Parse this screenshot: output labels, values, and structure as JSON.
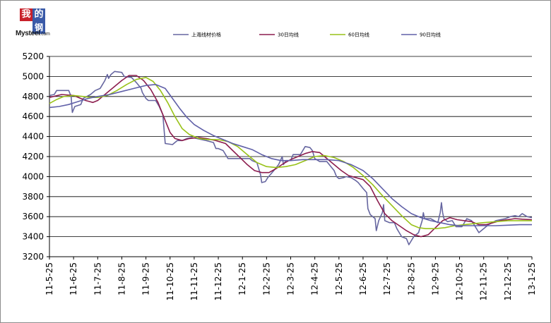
{
  "logo": {
    "box_1": "我",
    "box_2": "的",
    "box_3": "钢",
    "name": "Mysteel",
    "domain": ".com"
  },
  "chart_data": {
    "type": "line",
    "title": "",
    "xlabel": "",
    "ylabel": "",
    "ylim": [
      3200,
      5200
    ],
    "yticks": [
      3200,
      3400,
      3600,
      3800,
      4000,
      4200,
      4400,
      4600,
      4800,
      5000,
      5200
    ],
    "grid": "horizontal",
    "legend_position": "top",
    "xtick_labels": [
      "11-5-25",
      "11-6-25",
      "11-7-25",
      "11-8-25",
      "11-9-25",
      "11-10-25",
      "11-11-25",
      "11-12-25",
      "12-1-25",
      "12-2-25",
      "12-3-25",
      "12-4-25",
      "12-5-25",
      "12-6-25",
      "12-7-25",
      "12-8-25",
      "12-9-25",
      "12-10-25",
      "12-11-25",
      "12-12-25",
      "13-1-25"
    ],
    "series": [
      {
        "name": "上海线材价格",
        "color": "#6666a0",
        "points": [
          [
            0,
            4810
          ],
          [
            0.2,
            4820
          ],
          [
            0.3,
            4860
          ],
          [
            0.8,
            4860
          ],
          [
            0.9,
            4800
          ],
          [
            0.95,
            4640
          ],
          [
            1.05,
            4700
          ],
          [
            1.3,
            4720
          ],
          [
            1.4,
            4780
          ],
          [
            1.7,
            4820
          ],
          [
            1.9,
            4860
          ],
          [
            2.1,
            4880
          ],
          [
            2.2,
            4920
          ],
          [
            2.3,
            4960
          ],
          [
            2.4,
            5020
          ],
          [
            2.45,
            4980
          ],
          [
            2.55,
            5020
          ],
          [
            2.7,
            5050
          ],
          [
            3.0,
            5040
          ],
          [
            3.1,
            5000
          ],
          [
            3.4,
            4990
          ],
          [
            3.6,
            4940
          ],
          [
            3.8,
            4880
          ],
          [
            3.85,
            4840
          ],
          [
            4.0,
            4780
          ],
          [
            4.1,
            4760
          ],
          [
            4.4,
            4760
          ],
          [
            4.55,
            4700
          ],
          [
            4.7,
            4620
          ],
          [
            4.8,
            4330
          ],
          [
            5.1,
            4320
          ],
          [
            5.3,
            4360
          ],
          [
            5.5,
            4360
          ],
          [
            5.7,
            4380
          ],
          [
            5.9,
            4390
          ],
          [
            6.1,
            4380
          ],
          [
            6.3,
            4370
          ],
          [
            6.5,
            4360
          ],
          [
            6.8,
            4340
          ],
          [
            6.9,
            4280
          ],
          [
            7.0,
            4280
          ],
          [
            7.2,
            4260
          ],
          [
            7.4,
            4180
          ],
          [
            7.8,
            4180
          ],
          [
            8.3,
            4180
          ],
          [
            8.4,
            4160
          ],
          [
            8.6,
            4140
          ],
          [
            8.75,
            4020
          ],
          [
            8.8,
            3940
          ],
          [
            8.95,
            3950
          ],
          [
            9.05,
            3990
          ],
          [
            9.3,
            4060
          ],
          [
            9.5,
            4120
          ],
          [
            9.65,
            4200
          ],
          [
            9.7,
            4120
          ],
          [
            9.8,
            4160
          ],
          [
            10.0,
            4160
          ],
          [
            10.1,
            4220
          ],
          [
            10.4,
            4220
          ],
          [
            10.6,
            4300
          ],
          [
            10.8,
            4290
          ],
          [
            10.9,
            4260
          ],
          [
            11.0,
            4180
          ],
          [
            11.2,
            4150
          ],
          [
            11.5,
            4150
          ],
          [
            11.6,
            4120
          ],
          [
            11.8,
            4060
          ],
          [
            11.9,
            4000
          ],
          [
            12.0,
            3980
          ],
          [
            12.2,
            3990
          ],
          [
            12.3,
            4000
          ],
          [
            12.5,
            3990
          ],
          [
            12.7,
            3960
          ],
          [
            12.8,
            3940
          ],
          [
            13.0,
            3880
          ],
          [
            13.15,
            3840
          ],
          [
            13.2,
            3680
          ],
          [
            13.3,
            3620
          ],
          [
            13.5,
            3580
          ],
          [
            13.55,
            3460
          ],
          [
            13.65,
            3560
          ],
          [
            13.8,
            3640
          ],
          [
            13.85,
            3720
          ],
          [
            13.9,
            3560
          ],
          [
            14.1,
            3540
          ],
          [
            14.3,
            3540
          ],
          [
            14.4,
            3480
          ],
          [
            14.6,
            3400
          ],
          [
            14.8,
            3380
          ],
          [
            14.9,
            3320
          ],
          [
            15.1,
            3400
          ],
          [
            15.3,
            3440
          ],
          [
            15.45,
            3560
          ],
          [
            15.5,
            3640
          ],
          [
            15.55,
            3580
          ],
          [
            15.8,
            3580
          ],
          [
            16.1,
            3540
          ],
          [
            16.2,
            3640
          ],
          [
            16.25,
            3740
          ],
          [
            16.3,
            3640
          ],
          [
            16.35,
            3580
          ],
          [
            16.5,
            3550
          ],
          [
            16.7,
            3560
          ],
          [
            16.85,
            3500
          ],
          [
            17.1,
            3500
          ],
          [
            17.3,
            3580
          ],
          [
            17.5,
            3560
          ],
          [
            17.7,
            3480
          ],
          [
            17.8,
            3440
          ],
          [
            18.0,
            3480
          ],
          [
            18.2,
            3520
          ],
          [
            18.5,
            3560
          ],
          [
            18.9,
            3580
          ],
          [
            19.1,
            3600
          ],
          [
            19.3,
            3610
          ],
          [
            19.45,
            3600
          ],
          [
            19.6,
            3630
          ],
          [
            19.8,
            3600
          ],
          [
            20.0,
            3590
          ]
        ]
      },
      {
        "name": "30日均线",
        "color": "#8c1d4e",
        "points": [
          [
            0,
            4790
          ],
          [
            0.5,
            4820
          ],
          [
            1.0,
            4810
          ],
          [
            1.5,
            4760
          ],
          [
            1.8,
            4740
          ],
          [
            2.0,
            4760
          ],
          [
            2.3,
            4820
          ],
          [
            2.7,
            4900
          ],
          [
            3.0,
            4960
          ],
          [
            3.3,
            5010
          ],
          [
            3.6,
            5010
          ],
          [
            3.9,
            4960
          ],
          [
            4.2,
            4870
          ],
          [
            4.5,
            4740
          ],
          [
            4.8,
            4560
          ],
          [
            5.0,
            4440
          ],
          [
            5.2,
            4380
          ],
          [
            5.5,
            4360
          ],
          [
            5.8,
            4380
          ],
          [
            6.2,
            4390
          ],
          [
            6.5,
            4380
          ],
          [
            6.9,
            4360
          ],
          [
            7.3,
            4330
          ],
          [
            7.6,
            4260
          ],
          [
            7.9,
            4190
          ],
          [
            8.2,
            4120
          ],
          [
            8.5,
            4060
          ],
          [
            8.8,
            4040
          ],
          [
            9.1,
            4040
          ],
          [
            9.4,
            4080
          ],
          [
            9.7,
            4130
          ],
          [
            10.0,
            4170
          ],
          [
            10.3,
            4200
          ],
          [
            10.6,
            4230
          ],
          [
            10.9,
            4250
          ],
          [
            11.2,
            4240
          ],
          [
            11.5,
            4180
          ],
          [
            11.8,
            4120
          ],
          [
            12.1,
            4060
          ],
          [
            12.4,
            4010
          ],
          [
            12.7,
            3990
          ],
          [
            13.0,
            3970
          ],
          [
            13.3,
            3900
          ],
          [
            13.6,
            3760
          ],
          [
            13.9,
            3630
          ],
          [
            14.2,
            3560
          ],
          [
            14.5,
            3510
          ],
          [
            14.8,
            3460
          ],
          [
            15.1,
            3420
          ],
          [
            15.4,
            3400
          ],
          [
            15.7,
            3420
          ],
          [
            16.0,
            3490
          ],
          [
            16.3,
            3560
          ],
          [
            16.6,
            3590
          ],
          [
            16.9,
            3570
          ],
          [
            17.2,
            3560
          ],
          [
            17.5,
            3550
          ],
          [
            17.8,
            3520
          ],
          [
            18.1,
            3520
          ],
          [
            18.4,
            3540
          ],
          [
            18.7,
            3560
          ],
          [
            19.0,
            3570
          ],
          [
            19.3,
            3580
          ],
          [
            19.6,
            3575
          ],
          [
            20.0,
            3570
          ]
        ]
      },
      {
        "name": "60日均线",
        "color": "#99c219",
        "points": [
          [
            0,
            4730
          ],
          [
            0.3,
            4770
          ],
          [
            0.6,
            4800
          ],
          [
            1.0,
            4810
          ],
          [
            1.4,
            4800
          ],
          [
            1.7,
            4790
          ],
          [
            2.0,
            4790
          ],
          [
            2.4,
            4810
          ],
          [
            2.8,
            4860
          ],
          [
            3.2,
            4920
          ],
          [
            3.6,
            4970
          ],
          [
            4.0,
            4990
          ],
          [
            4.3,
            4950
          ],
          [
            4.6,
            4860
          ],
          [
            4.9,
            4740
          ],
          [
            5.2,
            4600
          ],
          [
            5.5,
            4480
          ],
          [
            5.8,
            4420
          ],
          [
            6.2,
            4380
          ],
          [
            6.6,
            4370
          ],
          [
            7.0,
            4370
          ],
          [
            7.4,
            4350
          ],
          [
            7.8,
            4300
          ],
          [
            8.2,
            4220
          ],
          [
            8.6,
            4140
          ],
          [
            9.0,
            4100
          ],
          [
            9.4,
            4090
          ],
          [
            9.8,
            4100
          ],
          [
            10.2,
            4120
          ],
          [
            10.6,
            4160
          ],
          [
            11.0,
            4200
          ],
          [
            11.4,
            4210
          ],
          [
            11.8,
            4190
          ],
          [
            12.2,
            4150
          ],
          [
            12.6,
            4090
          ],
          [
            13.0,
            4010
          ],
          [
            13.4,
            3920
          ],
          [
            13.8,
            3810
          ],
          [
            14.2,
            3710
          ],
          [
            14.6,
            3610
          ],
          [
            15.0,
            3520
          ],
          [
            15.3,
            3490
          ],
          [
            15.6,
            3480
          ],
          [
            16.0,
            3480
          ],
          [
            16.4,
            3490
          ],
          [
            16.8,
            3510
          ],
          [
            17.2,
            3520
          ],
          [
            17.6,
            3530
          ],
          [
            18.0,
            3540
          ],
          [
            18.5,
            3550
          ],
          [
            19.0,
            3560
          ],
          [
            19.5,
            3560
          ],
          [
            20.0,
            3560
          ]
        ]
      },
      {
        "name": "90日均线",
        "color": "#6060a8",
        "points": [
          [
            0,
            4690
          ],
          [
            0.4,
            4700
          ],
          [
            0.8,
            4720
          ],
          [
            1.2,
            4750
          ],
          [
            1.6,
            4780
          ],
          [
            2.0,
            4800
          ],
          [
            2.5,
            4820
          ],
          [
            3.0,
            4850
          ],
          [
            3.5,
            4880
          ],
          [
            4.0,
            4910
          ],
          [
            4.4,
            4920
          ],
          [
            4.8,
            4880
          ],
          [
            5.1,
            4780
          ],
          [
            5.4,
            4680
          ],
          [
            5.7,
            4590
          ],
          [
            6.0,
            4520
          ],
          [
            6.4,
            4460
          ],
          [
            6.8,
            4410
          ],
          [
            7.2,
            4370
          ],
          [
            7.6,
            4330
          ],
          [
            8.0,
            4300
          ],
          [
            8.4,
            4270
          ],
          [
            8.8,
            4220
          ],
          [
            9.2,
            4180
          ],
          [
            9.6,
            4160
          ],
          [
            10.0,
            4160
          ],
          [
            10.5,
            4170
          ],
          [
            11.0,
            4170
          ],
          [
            11.5,
            4170
          ],
          [
            12.0,
            4160
          ],
          [
            12.5,
            4120
          ],
          [
            13.0,
            4060
          ],
          [
            13.4,
            3980
          ],
          [
            13.8,
            3880
          ],
          [
            14.2,
            3780
          ],
          [
            14.6,
            3700
          ],
          [
            15.0,
            3630
          ],
          [
            15.4,
            3590
          ],
          [
            15.8,
            3560
          ],
          [
            16.2,
            3540
          ],
          [
            16.6,
            3520
          ],
          [
            17.0,
            3510
          ],
          [
            17.5,
            3510
          ],
          [
            18.0,
            3510
          ],
          [
            18.5,
            3510
          ],
          [
            19.0,
            3515
          ],
          [
            19.5,
            3520
          ],
          [
            20.0,
            3520
          ]
        ]
      }
    ]
  }
}
